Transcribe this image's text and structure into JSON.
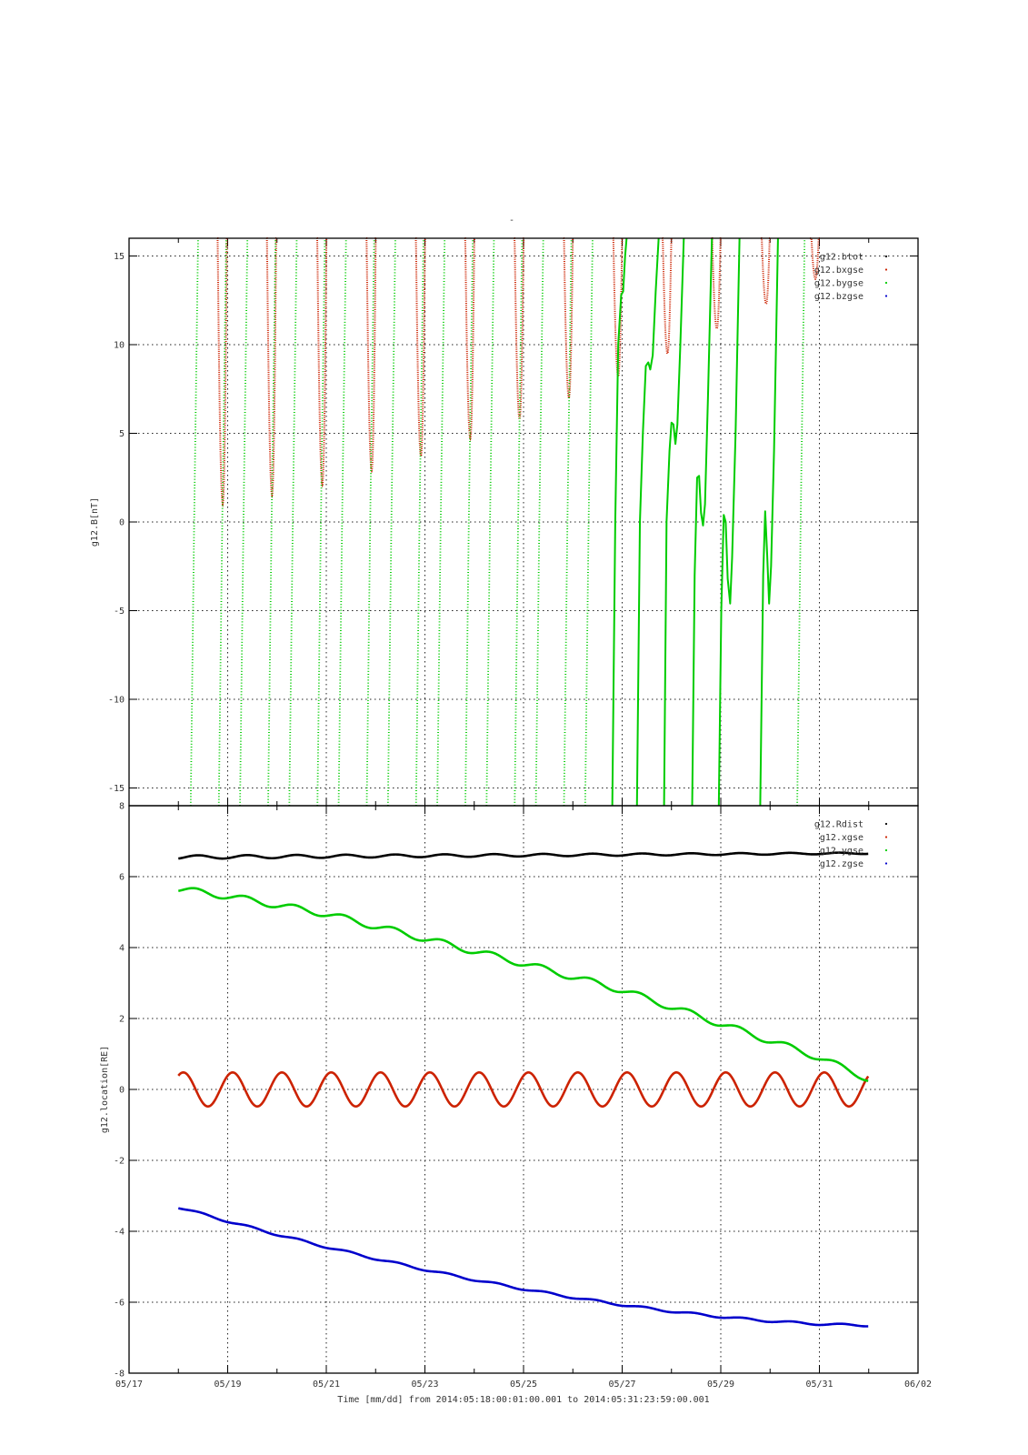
{
  "figure": {
    "title": "-",
    "xlabel": "Time [mm/dd]  from 2014:05:18:00:01:00.001  to  2014:05:31:23:59:00.001",
    "x_tick_labels": [
      "05/17",
      "05/19",
      "05/21",
      "05/23",
      "05/25",
      "05/27",
      "05/29",
      "05/31",
      "06/02"
    ]
  },
  "chart_data": [
    {
      "type": "line",
      "title": "-",
      "ylabel": "g12.B[nT]",
      "x_unit": "days since 2014-05-17 00:00",
      "xlim": [
        0,
        16
      ],
      "ylim": [
        -16,
        16
      ],
      "yticks": [
        -15,
        -10,
        -5,
        0,
        5,
        10,
        15
      ],
      "ytick_labels": [
        "-15",
        "-10",
        "-5",
        "0",
        "5",
        "10",
        "15"
      ],
      "grid": true,
      "legend_position": "top-right",
      "series": [
        {
          "name": "g12.btot",
          "color": "#000000",
          "style": "dots",
          "note": "values above plotted range (>16 nT)",
          "values": []
        },
        {
          "name": "g12.bxgse",
          "color": "#cc2200",
          "style": "dots",
          "minima_x": [
            1.9,
            2.9,
            3.92,
            4.92,
            5.92,
            6.92,
            7.92,
            8.92,
            9.92,
            10.92,
            11.92,
            12.92,
            13.92
          ],
          "minima_y": [
            1.0,
            1.5,
            2.1,
            2.9,
            3.7,
            4.7,
            5.8,
            7.0,
            8.2,
            9.5,
            10.9,
            12.3,
            13.7
          ]
        },
        {
          "name": "g12.bygse",
          "color": "#00cc00",
          "style": "dots",
          "segments": [
            [
              [
                1.25,
                -16
              ],
              [
                1.32,
                0
              ],
              [
                1.4,
                16
              ]
            ],
            [
              [
                1.82,
                -16
              ],
              [
                1.89,
                0
              ],
              [
                1.97,
                16
              ]
            ],
            [
              [
                2.25,
                -16
              ],
              [
                2.32,
                0
              ],
              [
                2.4,
                16
              ]
            ],
            [
              [
                2.82,
                -16
              ],
              [
                2.89,
                0
              ],
              [
                2.97,
                16
              ]
            ],
            [
              [
                3.25,
                -16
              ],
              [
                3.32,
                0
              ],
              [
                3.4,
                16
              ]
            ],
            [
              [
                3.82,
                -16
              ],
              [
                3.89,
                0
              ],
              [
                3.97,
                16
              ]
            ],
            [
              [
                4.25,
                -16
              ],
              [
                4.32,
                0
              ],
              [
                4.4,
                16
              ]
            ],
            [
              [
                4.82,
                -16
              ],
              [
                4.89,
                0
              ],
              [
                4.97,
                16
              ]
            ],
            [
              [
                5.25,
                -16
              ],
              [
                5.32,
                0
              ],
              [
                5.4,
                16
              ]
            ],
            [
              [
                5.82,
                -16
              ],
              [
                5.89,
                0
              ],
              [
                5.97,
                16
              ]
            ],
            [
              [
                6.25,
                -16
              ],
              [
                6.32,
                0
              ],
              [
                6.4,
                16
              ]
            ],
            [
              [
                6.82,
                -16
              ],
              [
                6.89,
                0
              ],
              [
                6.97,
                16
              ]
            ],
            [
              [
                7.25,
                -16
              ],
              [
                7.32,
                0
              ],
              [
                7.4,
                16
              ]
            ],
            [
              [
                7.82,
                -16
              ],
              [
                7.89,
                0
              ],
              [
                7.97,
                16
              ]
            ],
            [
              [
                8.25,
                -16
              ],
              [
                8.32,
                0
              ],
              [
                8.4,
                16
              ]
            ],
            [
              [
                8.82,
                -16
              ],
              [
                8.89,
                0
              ],
              [
                8.97,
                16
              ]
            ],
            [
              [
                9.25,
                -16
              ],
              [
                9.32,
                0
              ],
              [
                9.4,
                16
              ]
            ],
            [
              [
                9.8,
                -16
              ],
              [
                9.86,
                0
              ],
              [
                9.92,
                10
              ],
              [
                9.98,
                12.8
              ],
              [
                10.02,
                13
              ],
              [
                10.06,
                15
              ],
              [
                10.09,
                16
              ]
            ],
            [
              [
                10.3,
                -16
              ],
              [
                10.36,
                0
              ],
              [
                10.42,
                5
              ],
              [
                10.48,
                8.8
              ],
              [
                10.53,
                9.0
              ],
              [
                10.57,
                8.6
              ],
              [
                10.62,
                9.4
              ],
              [
                10.68,
                13
              ],
              [
                10.74,
                16
              ]
            ],
            [
              [
                10.85,
                -16
              ],
              [
                10.9,
                0
              ],
              [
                10.96,
                4
              ],
              [
                11.0,
                5.6
              ],
              [
                11.04,
                5.5
              ],
              [
                11.08,
                4.4
              ],
              [
                11.12,
                5.5
              ],
              [
                11.18,
                10
              ],
              [
                11.25,
                16
              ]
            ],
            [
              [
                11.42,
                -16
              ],
              [
                11.47,
                -3
              ],
              [
                11.52,
                2.5
              ],
              [
                11.56,
                2.6
              ],
              [
                11.6,
                0.5
              ],
              [
                11.64,
                -0.2
              ],
              [
                11.68,
                1
              ],
              [
                11.74,
                7
              ],
              [
                11.82,
                16
              ]
            ],
            [
              [
                11.96,
                -16
              ],
              [
                12.01,
                -5
              ],
              [
                12.06,
                0.4
              ],
              [
                12.1,
                0
              ],
              [
                12.14,
                -3.2
              ],
              [
                12.19,
                -4.6
              ],
              [
                12.23,
                -2
              ],
              [
                12.3,
                5
              ],
              [
                12.38,
                16
              ]
            ],
            [
              [
                12.8,
                -16
              ],
              [
                12.86,
                -3
              ],
              [
                12.9,
                0.6
              ],
              [
                12.94,
                -1.8
              ],
              [
                12.98,
                -4.6
              ],
              [
                13.02,
                -2.5
              ],
              [
                13.08,
                4
              ],
              [
                13.16,
                16
              ]
            ],
            [
              [
                13.55,
                -16
              ],
              [
                13.62,
                0
              ],
              [
                13.7,
                16
              ]
            ]
          ]
        },
        {
          "name": "g12.bzgse",
          "color": "#0000cc",
          "style": "dots",
          "note": "values above plotted range (>16 nT)",
          "values": []
        }
      ]
    },
    {
      "type": "line",
      "ylabel": "g12.location[RE]",
      "x_unit": "days since 2014-05-17 00:00",
      "xlim": [
        0,
        16
      ],
      "ylim": [
        -8,
        8
      ],
      "yticks": [
        -8,
        -6,
        -4,
        -2,
        0,
        2,
        4,
        6,
        8
      ],
      "ytick_labels": [
        "-8",
        "-6",
        "-4",
        "-2",
        "0",
        "2",
        "4",
        "6",
        "8"
      ],
      "grid": true,
      "legend_position": "top-right",
      "series": [
        {
          "name": "g12.Rdist",
          "color": "#000000",
          "x_start": 1.0,
          "x_end": 14.99,
          "base_start": 6.55,
          "base_end": 6.66,
          "ripple_amp": 0.05,
          "ripple_amp_end": 0.02
        },
        {
          "name": "g12.xgse",
          "color": "#cc2200",
          "x_start": 1.0,
          "x_end": 14.99,
          "mean": 0.0,
          "amplitude": 0.48,
          "period_days": 1.0,
          "peak_x": 1.1
        },
        {
          "name": "g12.ygse",
          "color": "#00cc00",
          "x_start": 1.0,
          "x_end": 14.99,
          "trend_x": [
            1.0,
            2.0,
            4.0,
            6.0,
            8.0,
            10.0,
            12.0,
            14.0,
            14.99
          ],
          "trend_y": [
            5.65,
            5.45,
            4.95,
            4.25,
            3.55,
            2.8,
            1.85,
            0.9,
            0.3
          ],
          "step_amp": 0.09
        },
        {
          "name": "g12.zgse",
          "color": "#0000cc",
          "x_start": 1.0,
          "x_end": 14.99,
          "y_start": -3.32,
          "y_end": -6.65
        }
      ]
    }
  ]
}
